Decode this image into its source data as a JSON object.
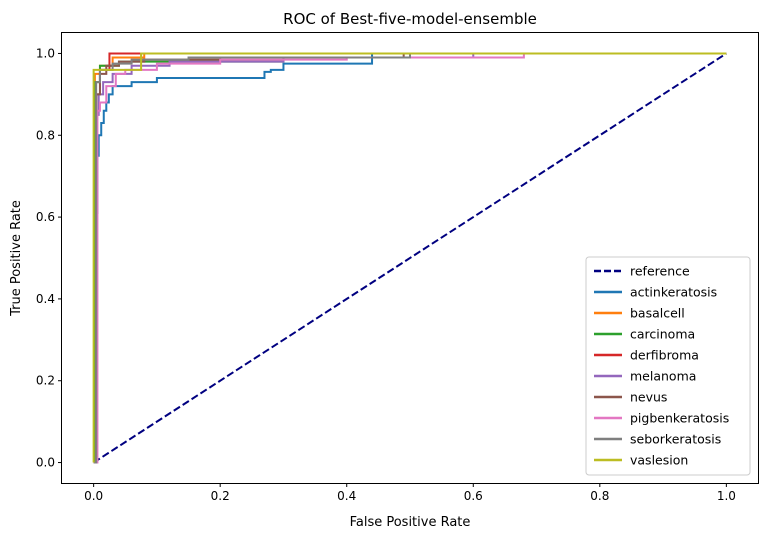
{
  "chart_data": {
    "type": "line",
    "title": "ROC of Best-five-model-ensemble",
    "xlabel": "False Positive Rate",
    "ylabel": "True Positive Rate",
    "xlim": [
      -0.05,
      1.05
    ],
    "ylim": [
      -0.05,
      1.05
    ],
    "xticks": [
      0.0,
      0.2,
      0.4,
      0.6,
      0.8,
      1.0
    ],
    "yticks": [
      0.0,
      0.2,
      0.4,
      0.6,
      0.8,
      1.0
    ],
    "xtick_labels": [
      "0.0",
      "0.2",
      "0.4",
      "0.6",
      "0.8",
      "1.0"
    ],
    "ytick_labels": [
      "0.0",
      "0.2",
      "0.4",
      "0.6",
      "0.8",
      "1.0"
    ],
    "grid": false,
    "legend_position": "lower-right",
    "series": [
      {
        "name": "reference",
        "color": "#000080",
        "dashed": true,
        "x": [
          0,
          1
        ],
        "y": [
          0,
          1
        ]
      },
      {
        "name": "actinkeratosis",
        "color": "#1f77b4",
        "dashed": false,
        "x": [
          0,
          0.002,
          0.002,
          0.004,
          0.004,
          0.006,
          0.006,
          0.008,
          0.008,
          0.012,
          0.012,
          0.016,
          0.016,
          0.02,
          0.02,
          0.024,
          0.024,
          0.03,
          0.03,
          0.04,
          0.04,
          0.06,
          0.06,
          0.1,
          0.1,
          0.27,
          0.27,
          0.28,
          0.28,
          0.3,
          0.3,
          0.31,
          0.31,
          0.44,
          0.44,
          1.0
        ],
        "y": [
          0,
          0,
          0.44,
          0.44,
          0.61,
          0.61,
          0.75,
          0.75,
          0.8,
          0.8,
          0.83,
          0.83,
          0.86,
          0.86,
          0.88,
          0.88,
          0.9,
          0.9,
          0.92,
          0.92,
          0.92,
          0.92,
          0.93,
          0.93,
          0.94,
          0.94,
          0.955,
          0.955,
          0.96,
          0.96,
          0.975,
          0.975,
          0.975,
          0.975,
          1.0,
          1.0
        ]
      },
      {
        "name": "basalcell",
        "color": "#ff7f0e",
        "dashed": false,
        "x": [
          0,
          0.002,
          0.002,
          0.01,
          0.01,
          0.03,
          0.03,
          0.08,
          0.08,
          1.0
        ],
        "y": [
          0,
          0,
          0.95,
          0.95,
          0.97,
          0.97,
          0.99,
          0.99,
          1.0,
          1.0
        ]
      },
      {
        "name": "carcinoma",
        "color": "#2ca02c",
        "dashed": false,
        "x": [
          0,
          0.002,
          0.002,
          0.01,
          0.01,
          0.04,
          0.04,
          0.3,
          0.3,
          0.5,
          0.5,
          1.0
        ],
        "y": [
          0,
          0,
          0.93,
          0.93,
          0.97,
          0.97,
          0.98,
          0.98,
          0.99,
          0.99,
          1.0,
          1.0
        ]
      },
      {
        "name": "derfibroma",
        "color": "#d62728",
        "dashed": false,
        "x": [
          0,
          0.004,
          0.004,
          0.01,
          0.01,
          0.025,
          0.025,
          1.0
        ],
        "y": [
          0,
          0,
          0.9,
          0.9,
          0.96,
          0.96,
          1.0,
          1.0
        ]
      },
      {
        "name": "melanoma",
        "color": "#9467bd",
        "dashed": false,
        "x": [
          0,
          0.004,
          0.004,
          0.008,
          0.008,
          0.015,
          0.015,
          0.03,
          0.03,
          0.06,
          0.06,
          0.12,
          0.12,
          0.3,
          0.3,
          0.6,
          0.6,
          1.0
        ],
        "y": [
          0,
          0,
          0.85,
          0.85,
          0.9,
          0.9,
          0.93,
          0.93,
          0.95,
          0.95,
          0.97,
          0.97,
          0.98,
          0.98,
          0.99,
          0.99,
          1.0,
          1.0
        ]
      },
      {
        "name": "nevus",
        "color": "#8c564b",
        "dashed": false,
        "x": [
          0,
          0.004,
          0.004,
          0.01,
          0.01,
          0.02,
          0.02,
          0.04,
          0.04,
          0.08,
          0.08,
          0.2,
          0.2,
          0.49,
          0.49,
          1.0
        ],
        "y": [
          0,
          0,
          0.9,
          0.9,
          0.95,
          0.95,
          0.97,
          0.97,
          0.98,
          0.98,
          0.985,
          0.985,
          0.99,
          0.99,
          1.0,
          1.0
        ]
      },
      {
        "name": "pigbenkeratosis",
        "color": "#e377c2",
        "dashed": false,
        "x": [
          0,
          0.006,
          0.006,
          0.01,
          0.01,
          0.02,
          0.02,
          0.035,
          0.035,
          0.05,
          0.05,
          0.1,
          0.1,
          0.2,
          0.2,
          0.4,
          0.4,
          0.68,
          0.68,
          1.0
        ],
        "y": [
          0,
          0,
          0.86,
          0.86,
          0.88,
          0.88,
          0.92,
          0.92,
          0.95,
          0.95,
          0.96,
          0.96,
          0.975,
          0.975,
          0.985,
          0.985,
          0.99,
          0.99,
          1.0,
          1.0
        ]
      },
      {
        "name": "seborkeratosis",
        "color": "#7f7f7f",
        "dashed": false,
        "x": [
          0,
          0.004,
          0.004,
          0.01,
          0.01,
          0.03,
          0.03,
          0.06,
          0.06,
          0.15,
          0.15,
          0.5,
          0.5,
          1.0
        ],
        "y": [
          0,
          0,
          0.93,
          0.93,
          0.96,
          0.96,
          0.975,
          0.975,
          0.985,
          0.985,
          0.99,
          0.99,
          1.0,
          1.0
        ]
      },
      {
        "name": "vaslesion",
        "color": "#bcbd22",
        "dashed": false,
        "x": [
          0,
          0,
          0.075,
          0.075,
          1.0
        ],
        "y": [
          0,
          0.96,
          0.96,
          1.0,
          1.0
        ]
      }
    ]
  }
}
